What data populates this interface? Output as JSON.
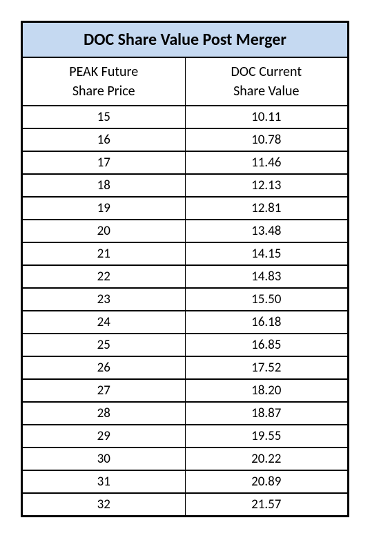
{
  "table": {
    "type": "table",
    "title": "DOC Share Value Post Merger",
    "title_bg": "#c5d9f1",
    "title_fontsize": 24,
    "header_fontsize": 20,
    "cell_fontsize": 19,
    "border_color": "#000000",
    "background_color": "#ffffff",
    "columns": [
      {
        "line1": "PEAK Future",
        "line2": "Share Price"
      },
      {
        "line1": "DOC Current",
        "line2": "Share Value"
      }
    ],
    "rows": [
      [
        "15",
        "10.11"
      ],
      [
        "16",
        "10.78"
      ],
      [
        "17",
        "11.46"
      ],
      [
        "18",
        "12.13"
      ],
      [
        "19",
        "12.81"
      ],
      [
        "20",
        "13.48"
      ],
      [
        "21",
        "14.15"
      ],
      [
        "22",
        "14.83"
      ],
      [
        "23",
        "15.50"
      ],
      [
        "24",
        "16.18"
      ],
      [
        "25",
        "16.85"
      ],
      [
        "26",
        "17.52"
      ],
      [
        "27",
        "18.20"
      ],
      [
        "28",
        "18.87"
      ],
      [
        "29",
        "19.55"
      ],
      [
        "30",
        "20.22"
      ],
      [
        "31",
        "20.89"
      ],
      [
        "32",
        "21.57"
      ]
    ]
  }
}
